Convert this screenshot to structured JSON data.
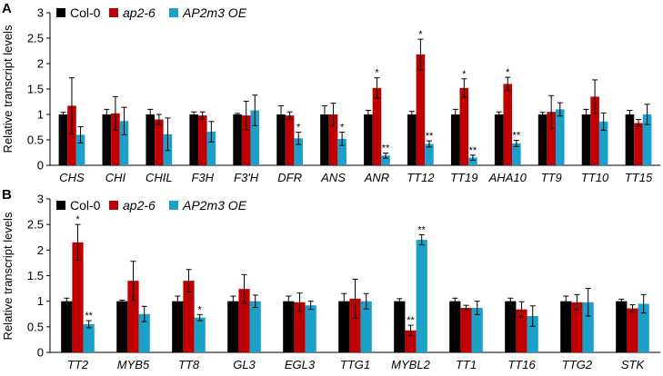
{
  "colors": {
    "col0": "#000000",
    "ap2": "#c00000",
    "oe": "#1ba1c9"
  },
  "chart_data": [
    {
      "type": "bar",
      "panel_label": "A",
      "ylabel": "Relative transcript levels",
      "ylim": [
        0,
        3
      ],
      "yticks": [
        "0",
        "0.5",
        "1",
        "1.5",
        "2",
        "2.5",
        "3"
      ],
      "legend": [
        "Col-0",
        "ap2-6",
        "AP2m3 OE"
      ],
      "categories": [
        "CHS",
        "CHI",
        "CHIL",
        "F3H",
        "F3'H",
        "DFR",
        "ANS",
        "ANR",
        "TT12",
        "TT19",
        "AHA10",
        "TT9",
        "TT10",
        "TT15"
      ],
      "series": [
        {
          "name": "Col-0",
          "values": [
            1.0,
            1.0,
            1.0,
            1.0,
            1.0,
            1.0,
            1.0,
            1.0,
            1.0,
            1.0,
            1.0,
            1.0,
            1.0,
            1.0
          ],
          "errors": [
            0.04,
            0.1,
            0.1,
            0.05,
            0.02,
            0.17,
            0.17,
            0.08,
            0.06,
            0.1,
            0.05,
            0.04,
            0.1,
            0.08
          ],
          "sig": [
            "",
            "",
            "",
            "",
            "",
            "",
            "",
            "",
            "",
            "",
            "",
            "",
            "",
            ""
          ]
        },
        {
          "name": "ap2-6",
          "values": [
            1.17,
            1.02,
            0.9,
            0.98,
            0.98,
            0.98,
            1.0,
            1.52,
            2.18,
            1.52,
            1.6,
            1.05,
            1.35,
            0.83
          ],
          "errors": [
            0.55,
            0.33,
            0.1,
            0.07,
            0.28,
            0.07,
            0.22,
            0.2,
            0.3,
            0.18,
            0.13,
            0.32,
            0.33,
            0.07
          ],
          "sig": [
            "",
            "",
            "",
            "",
            "",
            "",
            "",
            "*",
            "*",
            "*",
            "*",
            "",
            "",
            ""
          ]
        },
        {
          "name": "AP2m3 OE",
          "values": [
            0.6,
            0.87,
            0.61,
            0.66,
            1.08,
            0.53,
            0.52,
            0.19,
            0.42,
            0.15,
            0.43,
            1.1,
            0.86,
            1.0
          ],
          "errors": [
            0.16,
            0.27,
            0.32,
            0.2,
            0.3,
            0.12,
            0.13,
            0.05,
            0.06,
            0.05,
            0.06,
            0.13,
            0.17,
            0.2
          ],
          "sig": [
            "",
            "",
            "",
            "",
            "",
            "*",
            "*",
            "**",
            "**",
            "**",
            "**",
            "",
            "",
            ""
          ]
        }
      ]
    },
    {
      "type": "bar",
      "panel_label": "B",
      "ylabel": "Relative transcript levels",
      "ylim": [
        0,
        3
      ],
      "yticks": [
        "0",
        "0.5",
        "1",
        "1.5",
        "2",
        "2.5",
        "3"
      ],
      "legend": [
        "Col-0",
        "ap2-6",
        "AP2m3 OE"
      ],
      "categories": [
        "TT2",
        "MYB5",
        "TT8",
        "GL3",
        "EGL3",
        "TTG1",
        "MYBL2",
        "TT1",
        "TT16",
        "TTG2",
        "STK"
      ],
      "series": [
        {
          "name": "Col-0",
          "values": [
            1.0,
            1.0,
            1.0,
            1.0,
            1.0,
            1.0,
            1.0,
            1.0,
            1.0,
            1.0,
            1.0
          ],
          "errors": [
            0.06,
            0.02,
            0.1,
            0.1,
            0.1,
            0.15,
            0.05,
            0.06,
            0.06,
            0.1,
            0.04
          ],
          "sig": [
            "",
            "",
            "",
            "",
            "",
            "",
            "",
            "",
            "",
            "",
            ""
          ]
        },
        {
          "name": "ap2-6",
          "values": [
            2.15,
            1.4,
            1.4,
            1.24,
            0.98,
            1.05,
            0.43,
            0.87,
            0.84,
            0.98,
            0.86
          ],
          "errors": [
            0.35,
            0.38,
            0.22,
            0.28,
            0.18,
            0.38,
            0.1,
            0.05,
            0.15,
            0.15,
            0.07
          ],
          "sig": [
            "*",
            "",
            "",
            "",
            "",
            "",
            "**",
            "",
            "",
            "",
            ""
          ]
        },
        {
          "name": "AP2m3 OE",
          "values": [
            0.55,
            0.75,
            0.68,
            1.0,
            0.92,
            1.0,
            2.2,
            0.87,
            0.71,
            0.98,
            0.95
          ],
          "errors": [
            0.07,
            0.15,
            0.06,
            0.12,
            0.08,
            0.15,
            0.1,
            0.13,
            0.2,
            0.27,
            0.18
          ],
          "sig": [
            "**",
            "",
            "*",
            "",
            "",
            "",
            "**",
            "",
            "",
            "",
            ""
          ]
        }
      ]
    }
  ]
}
